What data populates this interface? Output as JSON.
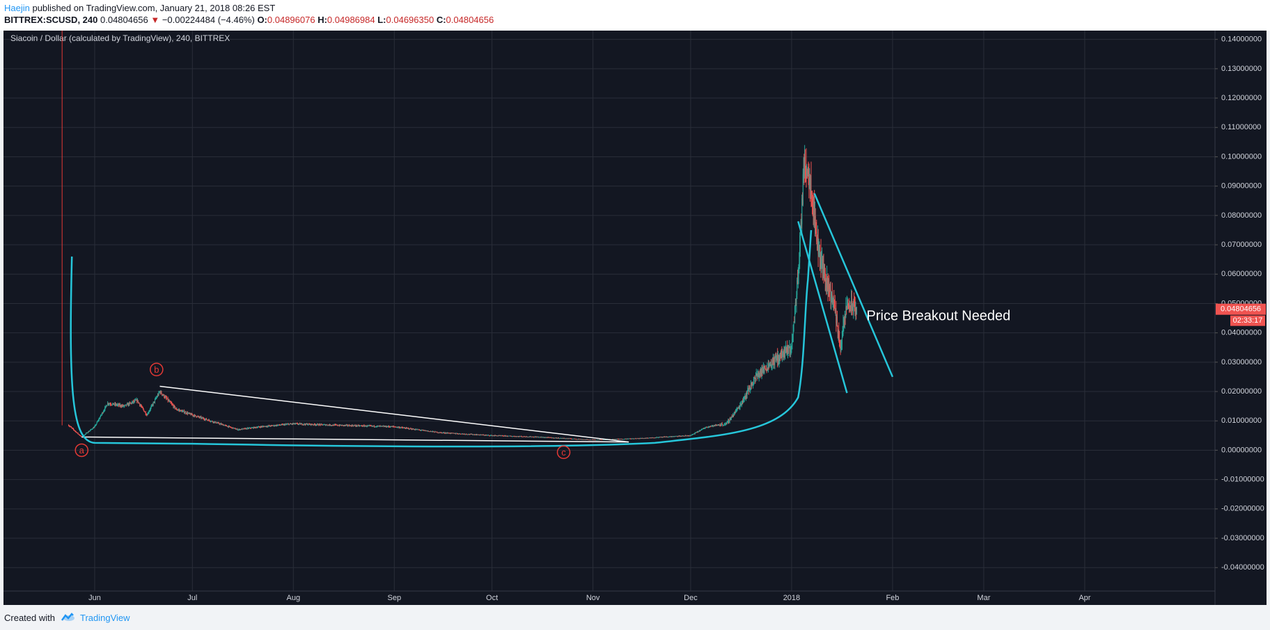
{
  "header": {
    "author": "Haejin",
    "published_text": " published on TradingView.com, January 21, 2018 08:26 EST",
    "symbol": "BITTREX:SCUSD, 240",
    "last": "0.04804656",
    "change_arrow": "▼",
    "change": "−0.00224484 (−4.46%)",
    "o_label": "O:",
    "o_value": "0.04896076",
    "h_label": "H:",
    "h_value": "0.04986984",
    "l_label": "L:",
    "l_value": "0.04696350",
    "c_label": "C:",
    "c_value": "0.04804656"
  },
  "footer": {
    "created_with": "Created with",
    "brand": "TradingView"
  },
  "colors": {
    "background": "#131722",
    "grid": "#2a2e39",
    "axis_text": "#d1d4dc",
    "up": "#26a69a",
    "down": "#ef5350",
    "drawing_cyan": "#26c6da",
    "drawing_white": "#ffffff",
    "price_label": "#ef5350",
    "label_circle": "#e53935"
  },
  "chart_data": {
    "type": "candlestick",
    "title": "Siacoin / Dollar (calculated by TradingView), 240, BITTREX",
    "y_ticks": [
      "0.14000000",
      "0.13000000",
      "0.12000000",
      "0.11000000",
      "0.10000000",
      "0.09000000",
      "0.08000000",
      "0.07000000",
      "0.06000000",
      "0.05000000",
      "0.04000000",
      "0.03000000",
      "0.02000000",
      "0.01000000",
      "0.00000000",
      "-0.01000000",
      "-0.02000000",
      "-0.03000000",
      "-0.04000000"
    ],
    "ylim": [
      -0.048,
      0.143
    ],
    "x_ticks": [
      "Jun",
      "Jul",
      "Aug",
      "Sep",
      "Oct",
      "Nov",
      "Dec",
      "2018",
      "Feb",
      "Mar",
      "Apr"
    ],
    "x_tick_dates": [
      "2017-06-01",
      "2017-07-01",
      "2017-08-01",
      "2017-09-01",
      "2017-10-01",
      "2017-11-01",
      "2017-12-01",
      "2018-01-01",
      "2018-02-01",
      "2018-03-01",
      "2018-04-01"
    ],
    "xlim": [
      "2017-05-04",
      "2018-05-11"
    ],
    "price_points": [
      [
        "2017-05-24",
        0.0085
      ],
      [
        "2017-05-26",
        0.0065
      ],
      [
        "2017-05-28",
        0.0045
      ],
      [
        "2017-06-01",
        0.008
      ],
      [
        "2017-06-05",
        0.016
      ],
      [
        "2017-06-10",
        0.015
      ],
      [
        "2017-06-14",
        0.017
      ],
      [
        "2017-06-17",
        0.012
      ],
      [
        "2017-06-21",
        0.02
      ],
      [
        "2017-06-26",
        0.014
      ],
      [
        "2017-07-01",
        0.012
      ],
      [
        "2017-07-08",
        0.0095
      ],
      [
        "2017-07-15",
        0.007
      ],
      [
        "2017-07-22",
        0.008
      ],
      [
        "2017-08-01",
        0.009
      ],
      [
        "2017-08-15",
        0.0085
      ],
      [
        "2017-09-01",
        0.008
      ],
      [
        "2017-09-15",
        0.006
      ],
      [
        "2017-10-01",
        0.005
      ],
      [
        "2017-10-15",
        0.0045
      ],
      [
        "2017-11-01",
        0.0035
      ],
      [
        "2017-11-15",
        0.004
      ],
      [
        "2017-12-01",
        0.005
      ],
      [
        "2017-12-06",
        0.008
      ],
      [
        "2017-12-12",
        0.009
      ],
      [
        "2017-12-16",
        0.015
      ],
      [
        "2017-12-21",
        0.025
      ],
      [
        "2017-12-26",
        0.03
      ],
      [
        "2018-01-01",
        0.035
      ],
      [
        "2018-01-03",
        0.06
      ],
      [
        "2018-01-05",
        0.1
      ],
      [
        "2018-01-07",
        0.09
      ],
      [
        "2018-01-09",
        0.07
      ],
      [
        "2018-01-11",
        0.06
      ],
      [
        "2018-01-14",
        0.05
      ],
      [
        "2018-01-16",
        0.035
      ],
      [
        "2018-01-18",
        0.05
      ],
      [
        "2018-01-21",
        0.048
      ]
    ],
    "y_axis_label": "0.04804656",
    "y_axis_countdown": "02:33:17",
    "annotations": [
      {
        "text": "Price Breakout Needed"
      },
      {
        "text": "a"
      },
      {
        "text": "b"
      },
      {
        "text": "c"
      }
    ]
  }
}
